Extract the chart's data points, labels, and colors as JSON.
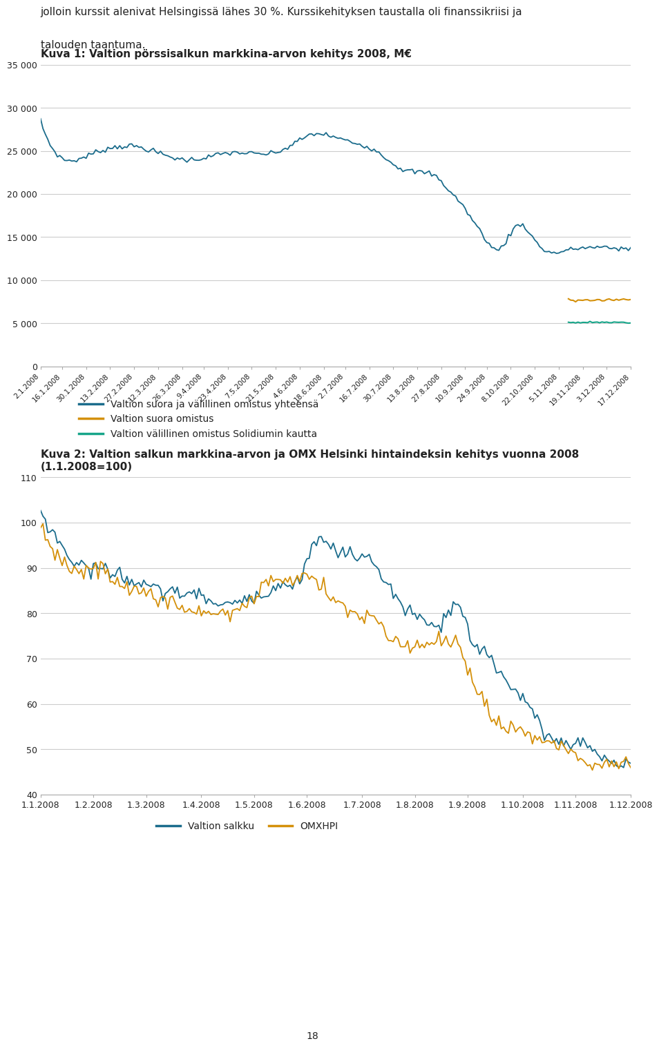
{
  "text_intro_line1": "jolloin kurssit alenivat Helsingissä lähes 30 %. Kurssikehityksen taustalla oli finanssikriisi ja",
  "text_intro_line2": "talouden taantuma.",
  "chart1_title": "Kuva 1: Valtion pörssisalkun markkina-arvon kehitys 2008, M€",
  "chart1_ytick_labels": [
    "0",
    "5 000",
    "10 000",
    "15 000",
    "20 000",
    "25 000",
    "30 000",
    "35 000"
  ],
  "chart1_ytick_vals": [
    0,
    5000,
    10000,
    15000,
    20000,
    25000,
    30000,
    35000
  ],
  "chart1_ylim": [
    0,
    35000
  ],
  "chart1_xtick_labels": [
    "2.1.2008",
    "16.1.2008",
    "30.1.2008",
    "13.2.2008",
    "27.2.2008",
    "12.3.2008",
    "26.3.2008",
    "9.4.2008",
    "23.4.2008",
    "7.5.2008",
    "21.5.2008",
    "4.6.2008",
    "18.6.2008",
    "2.7.2008",
    "16.7.2008",
    "30.7.2008",
    "13.8.2008",
    "27.8.2008",
    "10.9.2008",
    "24.9.2008",
    "8.10.2008",
    "22.10.2008",
    "5.11.2008",
    "19.11.2008",
    "3.12.2008",
    "17.12.2008"
  ],
  "chart1_color_total": "#1b6c8c",
  "chart1_color_suora": "#d4900a",
  "chart1_color_valillinen": "#17a589",
  "chart1_legend": [
    "Valtion suora ja välillinen omistus yhteensä",
    "Valtion suora omistus",
    "Valtion välillinen omistus Solidiumin kautta"
  ],
  "chart2_title_line1": "Kuva 2: Valtion salkun markkina-arvon ja OMX Helsinki hintaindeksin kehitys vuonna 2008",
  "chart2_title_line2": "(1.1.2008=100)",
  "chart2_ytick_vals": [
    40,
    50,
    60,
    70,
    80,
    90,
    100,
    110
  ],
  "chart2_ytick_labels": [
    "40",
    "50",
    "60",
    "70",
    "80",
    "90",
    "100",
    "110"
  ],
  "chart2_ylim": [
    40,
    110
  ],
  "chart2_xtick_labels": [
    "1.1.2008",
    "1.2.2008",
    "1.3.2008",
    "1.4.2008",
    "1.5.2008",
    "1.6.2008",
    "1.7.2008",
    "1.8.2008",
    "1.9.2008",
    "1.10.2008",
    "1.11.2008",
    "1.12.2008"
  ],
  "chart2_color_salkku": "#1b6c8c",
  "chart2_color_omx": "#d4900a",
  "chart2_legend": [
    "Valtion salkku",
    "OMXHPI"
  ],
  "background_color": "#ffffff",
  "grid_color": "#cccccc",
  "text_color": "#222222",
  "page_number": "18"
}
